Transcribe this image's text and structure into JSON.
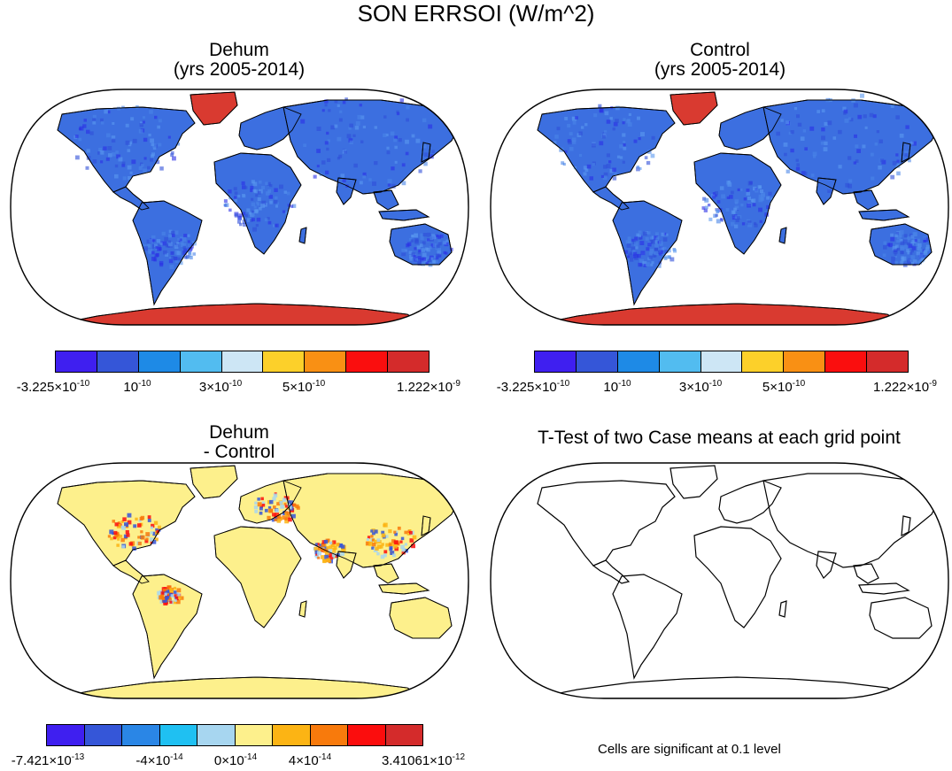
{
  "title": "SON ERRSOI (W/m^2)",
  "panels": [
    {
      "id": "dehum",
      "title_line1": "Dehum",
      "title_line2": "(yrs 2005-2014)"
    },
    {
      "id": "control",
      "title_line1": "Control",
      "title_line2": "(yrs 2005-2014)"
    },
    {
      "id": "diff",
      "title_line1": "Dehum",
      "title_line2": "- Control"
    },
    {
      "id": "ttest",
      "title_line1": "T-Test of two Case means at each grid point",
      "title_line2": ""
    }
  ],
  "colorbars": {
    "top": {
      "colors": [
        "#3f1ff0",
        "#3556d8",
        "#1e8ae6",
        "#52bcf0",
        "#cde6f5",
        "#fcd02a",
        "#f99014",
        "#fa0e0e",
        "#d42b2b"
      ],
      "labels": [
        {
          "mantissa": "-3.225×10",
          "exp": "-10"
        },
        {
          "mantissa": "10",
          "exp": "-10"
        },
        {
          "mantissa": "3×10",
          "exp": "-10"
        },
        {
          "mantissa": "5×10",
          "exp": "-10"
        },
        {
          "mantissa": "1.222×10",
          "exp": "-9"
        }
      ]
    },
    "bottom": {
      "colors": [
        "#3f1ff0",
        "#3556d8",
        "#2a86e6",
        "#1fc0f2",
        "#a7d6f0",
        "#fdf08c",
        "#fcb414",
        "#f87a0c",
        "#fb0d0d",
        "#d42b2b"
      ],
      "labels": [
        {
          "mantissa": "-7.421×10",
          "exp": "-13"
        },
        {
          "mantissa": "-4×10",
          "exp": "-14"
        },
        {
          "mantissa": "0×10",
          "exp": "-14"
        },
        {
          "mantissa": "4×10",
          "exp": "-14"
        },
        {
          "mantissa": "3.41061×10",
          "exp": "-12"
        }
      ]
    }
  },
  "ttest_note": "Cells are significant at 0.1 level",
  "colors": {
    "ocean": "#ffffff",
    "land_blue": "#3c6fe0",
    "pole_red": "#d93a30",
    "diff_land": "#fdf08c",
    "outline": "#000000"
  }
}
